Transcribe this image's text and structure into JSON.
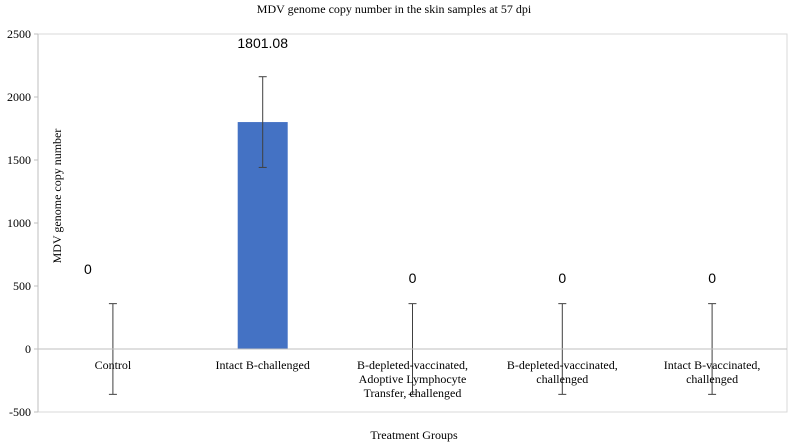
{
  "chart_data": {
    "type": "bar",
    "title": "MDV genome copy number in the skin samples at 57 dpi",
    "xlabel": "Treatment Groups",
    "ylabel": "MDV genome copy number",
    "ylim": [
      -500,
      2500
    ],
    "yticks": [
      -500,
      0,
      500,
      1000,
      1500,
      2000,
      2500
    ],
    "grid": false,
    "legend": "none",
    "categories": [
      [
        "Control"
      ],
      [
        "Intact B-challenged"
      ],
      [
        "B-depleted-vaccinated,",
        "Adoptive Lymphocyte",
        "Transfer, challenged"
      ],
      [
        "B-depleted-vaccinated,",
        "challenged"
      ],
      [
        "Intact B-vaccinated,",
        "challenged"
      ]
    ],
    "values": [
      0,
      1801.08,
      0,
      0,
      0
    ],
    "data_labels": [
      "0",
      "1801.08",
      "0",
      "0",
      "0"
    ],
    "error": [
      360,
      360,
      360,
      360,
      360
    ],
    "bar_color": "#4472C4"
  }
}
